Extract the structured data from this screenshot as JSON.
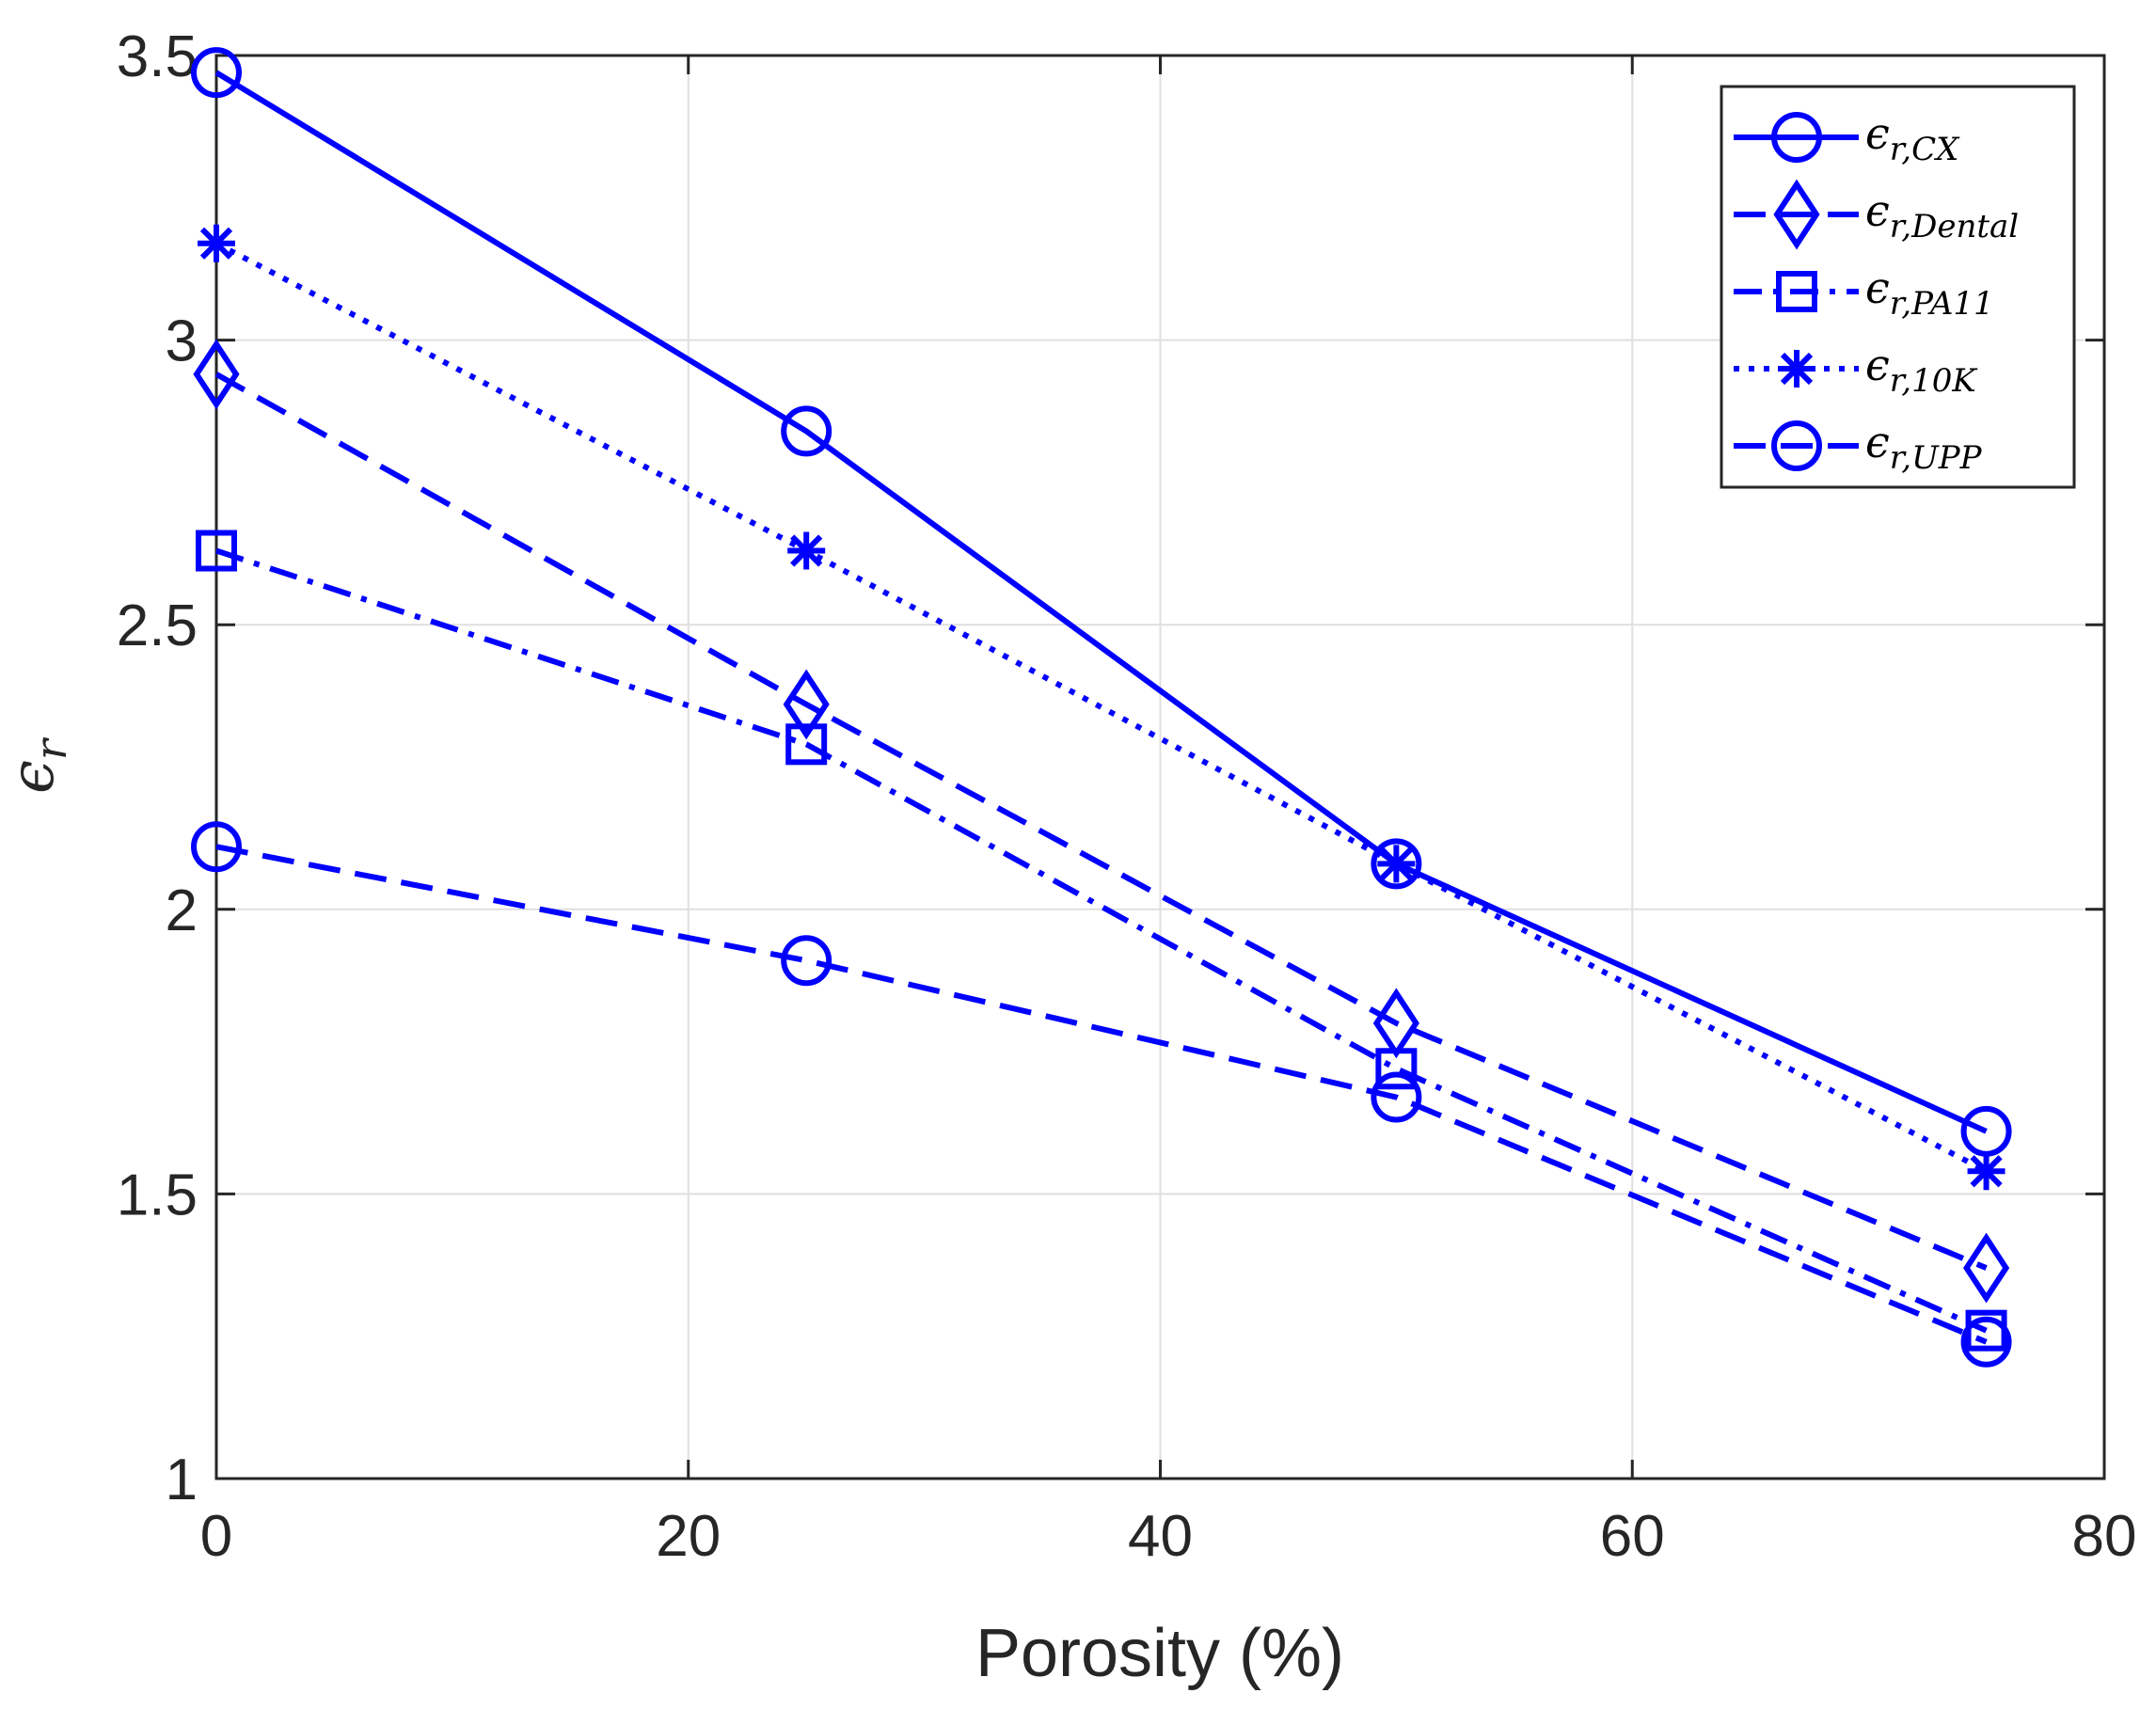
{
  "chart_data": {
    "type": "line",
    "title": "",
    "xlabel": "Porosity (%)",
    "ylabel": "ϵr",
    "ylabel_base": "ϵ",
    "ylabel_sub": "r",
    "xlim": [
      0,
      80
    ],
    "ylim": [
      1,
      3.5
    ],
    "xticks": [
      0,
      20,
      40,
      60,
      80
    ],
    "yticks": [
      1,
      1.5,
      2,
      2.5,
      3,
      3.5
    ],
    "xtick_labels": [
      "0",
      "20",
      "40",
      "60",
      "80"
    ],
    "ytick_labels": [
      "1",
      "1.5",
      "2",
      "2.5",
      "3",
      "3.5"
    ],
    "grid": true,
    "legend_position": "top-right",
    "color": "#0000ff",
    "x": [
      0,
      25,
      50,
      75
    ],
    "series": [
      {
        "name": "ϵr,CX",
        "label_base": "ϵ",
        "label_sub": "r,CX",
        "values": [
          3.47,
          2.84,
          2.08,
          1.61
        ],
        "line": "solid",
        "marker": "circle"
      },
      {
        "name": "ϵr,Dental",
        "label_base": "ϵ",
        "label_sub": "r,Dental",
        "values": [
          2.94,
          2.36,
          1.8,
          1.37
        ],
        "line": "dashed",
        "marker": "diamond"
      },
      {
        "name": "ϵr,PA11",
        "label_base": "ϵ",
        "label_sub": "r,PA11",
        "values": [
          2.63,
          2.29,
          1.72,
          1.26
        ],
        "line": "dashdot",
        "marker": "square"
      },
      {
        "name": "ϵr,10K",
        "label_base": "ϵ",
        "label_sub": "r,10K",
        "values": [
          3.17,
          2.63,
          2.08,
          1.54
        ],
        "line": "dotted",
        "marker": "asterisk"
      },
      {
        "name": "ϵr,UPP",
        "label_base": "ϵ",
        "label_sub": "r,UPP",
        "values": [
          2.11,
          1.91,
          1.67,
          1.24
        ],
        "line": "dashed",
        "marker": "circle"
      }
    ]
  }
}
